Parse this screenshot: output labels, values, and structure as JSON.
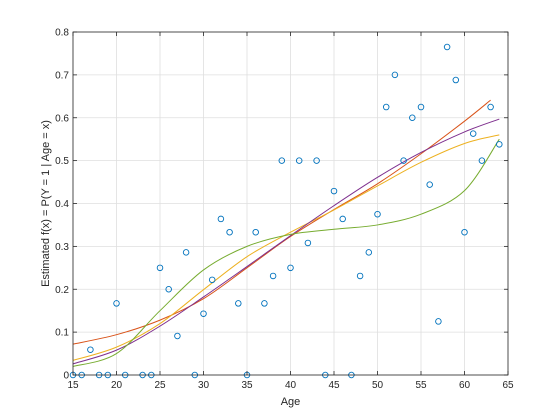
{
  "chart_data": {
    "type": "scatter",
    "title": "",
    "xlabel": "Age",
    "ylabel": "Estimated f(x) = P(Y = 1 | Age = x)",
    "xlim": [
      15,
      65
    ],
    "ylim": [
      0,
      0.8
    ],
    "xticks": [
      "15",
      "20",
      "25",
      "30",
      "35",
      "40",
      "45",
      "50",
      "55",
      "60",
      "65"
    ],
    "yticks": [
      "0",
      "0.1",
      "0.2",
      "0.3",
      "0.4",
      "0.5",
      "0.6",
      "0.7",
      "0.8"
    ],
    "grid": true,
    "points": {
      "color": "#0072bd",
      "x": [
        15,
        16,
        17,
        18,
        19,
        20,
        21,
        23,
        24,
        25,
        26,
        27,
        28,
        29,
        30,
        31,
        32,
        33,
        34,
        35,
        36,
        37,
        38,
        39,
        40,
        41,
        42,
        43,
        44,
        45,
        46,
        47,
        48,
        49,
        50,
        51,
        52,
        53,
        54,
        55,
        56,
        57,
        58,
        59,
        60,
        61,
        62,
        63,
        64
      ],
      "y": [
        0,
        0,
        0.059,
        0,
        0,
        0.167,
        0,
        0,
        0,
        0.25,
        0.2,
        0.091,
        0.286,
        0,
        0.143,
        0.222,
        0.364,
        0.333,
        0.167,
        0,
        0.333,
        0.167,
        0.231,
        0.5,
        0.25,
        0.5,
        0.308,
        0.5,
        0,
        0.429,
        0.364,
        0,
        0.231,
        0.286,
        0.375,
        0.625,
        0.7,
        0.5,
        0.6,
        0.625,
        0.444,
        0.125,
        0.765,
        0.688,
        0.333,
        0.563,
        0.5,
        0.625,
        0.538
      ]
    },
    "series": [
      {
        "color": "#d95319",
        "x": [
          15,
          20,
          25,
          30,
          35,
          40,
          45,
          50,
          55,
          60,
          63
        ],
        "y": [
          0.072,
          0.094,
          0.128,
          0.178,
          0.25,
          0.323,
          0.386,
          0.446,
          0.516,
          0.592,
          0.641
        ]
      },
      {
        "color": "#edb120",
        "x": [
          15,
          20,
          25,
          30,
          35,
          40,
          45,
          50,
          55,
          60,
          64
        ],
        "y": [
          0.034,
          0.065,
          0.12,
          0.199,
          0.276,
          0.333,
          0.385,
          0.441,
          0.496,
          0.54,
          0.56
        ]
      },
      {
        "color": "#7e2f8e",
        "x": [
          15,
          20,
          25,
          30,
          35,
          40,
          45,
          50,
          55,
          60,
          64
        ],
        "y": [
          0.026,
          0.058,
          0.114,
          0.182,
          0.253,
          0.325,
          0.395,
          0.461,
          0.519,
          0.567,
          0.597
        ]
      },
      {
        "color": "#77ac30",
        "x": [
          15,
          20,
          25,
          30,
          35,
          40,
          45,
          50,
          55,
          60,
          64
        ],
        "y": [
          0.02,
          0.05,
          0.15,
          0.245,
          0.3,
          0.328,
          0.34,
          0.35,
          0.375,
          0.43,
          0.55
        ]
      }
    ]
  }
}
